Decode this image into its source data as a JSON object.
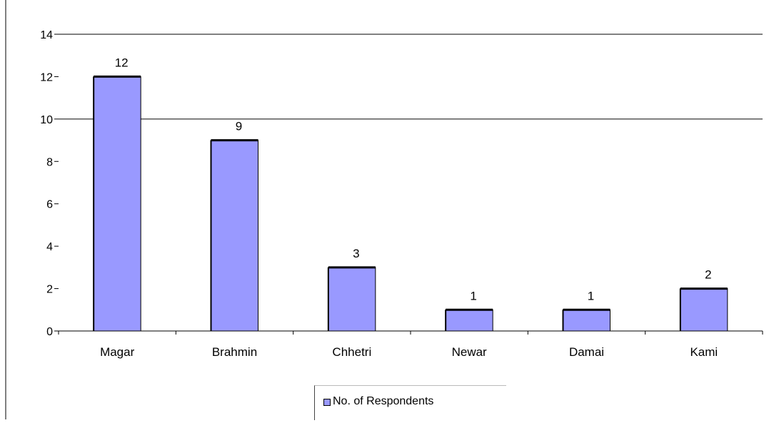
{
  "chart_data": {
    "type": "bar",
    "categories": [
      "Magar",
      "Brahmin",
      "Chhetri",
      "Newar",
      "Damai",
      "Kami"
    ],
    "series": [
      {
        "name": "No. of Respondents",
        "values": [
          12,
          9,
          3,
          1,
          1,
          2
        ]
      }
    ],
    "data_labels": [
      "12",
      "9",
      "3",
      "1",
      "1",
      "2"
    ],
    "y_ticks": [
      "0",
      "2",
      "4",
      "6",
      "8",
      "10",
      "12",
      "14"
    ],
    "ylim": [
      0,
      14
    ],
    "gridlines_at": [
      10,
      14
    ],
    "legend_position": "bottom",
    "bar_color": "#9999ff"
  }
}
